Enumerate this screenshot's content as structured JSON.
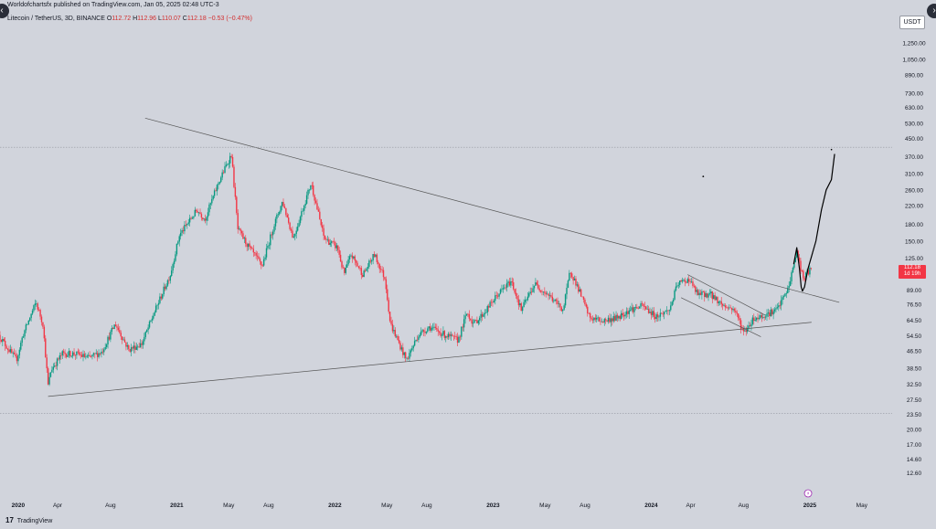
{
  "header": {
    "publisher": "Worldofchartsfx published on TradingView.com, Jan 05, 2025 02:48 UTC-3",
    "symbol": "Litecoin / TetherUS, 3D, BINANCE",
    "ohlc": [
      {
        "label": "O",
        "value": "112.72"
      },
      {
        "label": "H",
        "value": "112.96"
      },
      {
        "label": "L",
        "value": "110.07"
      },
      {
        "label": "C",
        "value": "112.18"
      },
      {
        "label": "",
        "value": "−0.53 (−0.47%)"
      }
    ]
  },
  "currency": "USDT",
  "last_price_tag": {
    "price": "112.18",
    "countdown": "1d 19h"
  },
  "footer": {
    "logo_glyph": "17",
    "brand": "TradingView"
  },
  "colors": {
    "up": "#089981",
    "down": "#f23645",
    "background": "#d1d4dc",
    "line": "#555555",
    "label": "#131722"
  },
  "chart_data": {
    "type": "candlestick",
    "title": "",
    "y_scale": "log",
    "ylim": [
      10.0,
      1450.0
    ],
    "xlim": [
      "2019-11-20",
      "2025-07-10"
    ],
    "y_ticks": [
      "1,250.00",
      "1,050.00",
      "890.00",
      "730.00",
      "630.00",
      "530.00",
      "450.00",
      "370.00",
      "310.00",
      "260.00",
      "220.00",
      "180.00",
      "150.00",
      "125.00",
      "105.00",
      "89.00",
      "76.50",
      "64.50",
      "54.50",
      "46.50",
      "38.50",
      "32.50",
      "27.50",
      "23.50",
      "20.00",
      "17.00",
      "14.60",
      "12.60"
    ],
    "x_ticks": [
      {
        "label": "2020",
        "date": "2020-01-01"
      },
      {
        "label": "Apr",
        "date": "2020-04-01"
      },
      {
        "label": "Aug",
        "date": "2020-08-01"
      },
      {
        "label": "2021",
        "date": "2021-01-01"
      },
      {
        "label": "May",
        "date": "2021-05-01"
      },
      {
        "label": "Aug",
        "date": "2021-08-01"
      },
      {
        "label": "2022",
        "date": "2022-01-01"
      },
      {
        "label": "May",
        "date": "2022-05-01"
      },
      {
        "label": "Aug",
        "date": "2022-08-01"
      },
      {
        "label": "2023",
        "date": "2023-01-01"
      },
      {
        "label": "May",
        "date": "2023-05-01"
      },
      {
        "label": "Aug",
        "date": "2023-08-01"
      },
      {
        "label": "2024",
        "date": "2024-01-01"
      },
      {
        "label": "Apr",
        "date": "2024-04-01"
      },
      {
        "label": "Aug",
        "date": "2024-08-01"
      },
      {
        "label": "2025",
        "date": "2025-01-01"
      },
      {
        "label": "May",
        "date": "2025-05-01"
      }
    ],
    "price_path": [
      [
        "2019-11-20",
        55
      ],
      [
        "2019-12-10",
        48
      ],
      [
        "2019-12-31",
        42
      ],
      [
        "2020-01-15",
        55
      ],
      [
        "2020-02-14",
        78
      ],
      [
        "2020-03-01",
        62
      ],
      [
        "2020-03-13",
        32
      ],
      [
        "2020-03-20",
        38
      ],
      [
        "2020-04-15",
        45
      ],
      [
        "2020-05-15",
        45
      ],
      [
        "2020-06-15",
        43
      ],
      [
        "2020-07-15",
        46
      ],
      [
        "2020-08-15",
        62
      ],
      [
        "2020-09-15",
        47
      ],
      [
        "2020-10-15",
        50
      ],
      [
        "2020-11-25",
        80
      ],
      [
        "2020-12-20",
        105
      ],
      [
        "2021-01-10",
        160
      ],
      [
        "2021-02-20",
        210
      ],
      [
        "2021-03-10",
        190
      ],
      [
        "2021-04-10",
        280
      ],
      [
        "2021-05-10",
        380
      ],
      [
        "2021-05-25",
        170
      ],
      [
        "2021-06-20",
        140
      ],
      [
        "2021-07-20",
        115
      ],
      [
        "2021-08-15",
        175
      ],
      [
        "2021-09-05",
        230
      ],
      [
        "2021-09-30",
        155
      ],
      [
        "2021-11-10",
        280
      ],
      [
        "2021-12-10",
        155
      ],
      [
        "2022-01-10",
        140
      ],
      [
        "2022-01-25",
        105
      ],
      [
        "2022-02-10",
        130
      ],
      [
        "2022-03-10",
        105
      ],
      [
        "2022-04-05",
        130
      ],
      [
        "2022-04-30",
        100
      ],
      [
        "2022-05-12",
        62
      ],
      [
        "2022-06-18",
        42
      ],
      [
        "2022-07-15",
        55
      ],
      [
        "2022-08-10",
        60
      ],
      [
        "2022-09-15",
        55
      ],
      [
        "2022-10-15",
        52
      ],
      [
        "2022-11-05",
        70
      ],
      [
        "2022-11-20",
        62
      ],
      [
        "2022-12-15",
        70
      ],
      [
        "2023-01-15",
        85
      ],
      [
        "2023-02-15",
        98
      ],
      [
        "2023-03-10",
        72
      ],
      [
        "2023-04-10",
        95
      ],
      [
        "2023-05-10",
        85
      ],
      [
        "2023-06-15",
        72
      ],
      [
        "2023-07-01",
        110
      ],
      [
        "2023-07-20",
        90
      ],
      [
        "2023-08-15",
        66
      ],
      [
        "2023-09-15",
        64
      ],
      [
        "2023-10-15",
        66
      ],
      [
        "2023-11-15",
        72
      ],
      [
        "2023-12-15",
        75
      ],
      [
        "2024-01-15",
        67
      ],
      [
        "2024-02-15",
        72
      ],
      [
        "2024-03-05",
        95
      ],
      [
        "2024-03-31",
        100
      ],
      [
        "2024-04-20",
        85
      ],
      [
        "2024-05-20",
        85
      ],
      [
        "2024-06-20",
        75
      ],
      [
        "2024-07-15",
        72
      ],
      [
        "2024-08-05",
        56
      ],
      [
        "2024-08-25",
        65
      ],
      [
        "2024-09-20",
        68
      ],
      [
        "2024-10-20",
        72
      ],
      [
        "2024-11-15",
        90
      ],
      [
        "2024-12-05",
        135
      ],
      [
        "2024-12-20",
        100
      ],
      [
        "2025-01-05",
        112
      ]
    ],
    "last": {
      "open": 112.72,
      "high": 112.96,
      "low": 110.07,
      "close": 112.18
    },
    "drawings": [
      {
        "name": "upper-trendline",
        "points": [
          [
            "2020-10-20",
            560
          ],
          [
            "2025-03-10",
            78
          ]
        ]
      },
      {
        "name": "lower-trendline",
        "points": [
          [
            "2020-03-10",
            28.5
          ],
          [
            "2025-01-05",
            63
          ]
        ]
      },
      {
        "name": "channel-upper-line",
        "points": [
          [
            "2024-03-25",
            105
          ],
          [
            "2024-09-20",
            68
          ]
        ]
      },
      {
        "name": "channel-lower-line",
        "points": [
          [
            "2024-03-10",
            82
          ],
          [
            "2024-09-10",
            54
          ]
        ]
      },
      {
        "name": "support-level-line",
        "points": [
          [
            "2019-11-20",
            23.8
          ],
          [
            "2025-07-10",
            23.8
          ]
        ]
      },
      {
        "name": "resistance-level-line",
        "points": [
          [
            "2019-11-20",
            410
          ],
          [
            "2025-07-10",
            410
          ]
        ]
      }
    ],
    "projection": [
      [
        "2024-11-25",
        118
      ],
      [
        "2024-12-02",
        140
      ],
      [
        "2024-12-08",
        112
      ],
      [
        "2024-12-12",
        92
      ],
      [
        "2024-12-15",
        88
      ],
      [
        "2024-12-20",
        92
      ],
      [
        "2024-12-28",
        112
      ],
      [
        "2025-01-15",
        150
      ],
      [
        "2025-01-28",
        210
      ],
      [
        "2025-02-08",
        260
      ],
      [
        "2025-02-20",
        290
      ],
      [
        "2025-02-27",
        380
      ]
    ]
  }
}
